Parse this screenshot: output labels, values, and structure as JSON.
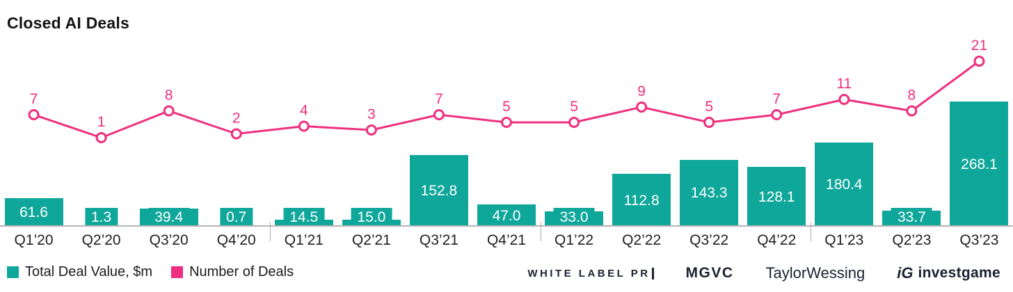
{
  "title": "Closed AI Deals",
  "chart_data": {
    "type": "combo",
    "categories": [
      "Q1’20",
      "Q2’20",
      "Q3’20",
      "Q4’20",
      "Q1’21",
      "Q2’21",
      "Q3’21",
      "Q4’21",
      "Q1’22",
      "Q2’22",
      "Q3’22",
      "Q4’22",
      "Q1’23",
      "Q2’23",
      "Q3’23"
    ],
    "series": [
      {
        "name": "Total Deal Value, $m",
        "type": "bar",
        "color": "#10a79b",
        "values": [
          61.6,
          1.3,
          39.4,
          0.7,
          14.5,
          15.0,
          152.8,
          47.0,
          33.0,
          112.8,
          143.3,
          128.1,
          180.4,
          33.7,
          268.1
        ]
      },
      {
        "name": "Number of Deals",
        "type": "line",
        "color": "#ee2f7f",
        "values": [
          7,
          1,
          8,
          2,
          4,
          3,
          7,
          5,
          5,
          9,
          5,
          7,
          11,
          8,
          21
        ]
      }
    ],
    "title": "Closed AI Deals",
    "xlabel": "",
    "ylabel": "",
    "ylim_bar": [
      0,
      280
    ],
    "ylim_line": [
      0,
      22
    ],
    "grid": false,
    "legend_position": "bottom-left",
    "year_separator_after_indices": [
      3,
      7,
      11
    ],
    "bar_label_decimals": 1
  },
  "logos": {
    "white_label_pr": "WHITE LABEL PR",
    "mgvc": "MGVC",
    "taylor_wessing": "TaylorWessing",
    "investgame_mark": "iG",
    "investgame": "investgame"
  }
}
